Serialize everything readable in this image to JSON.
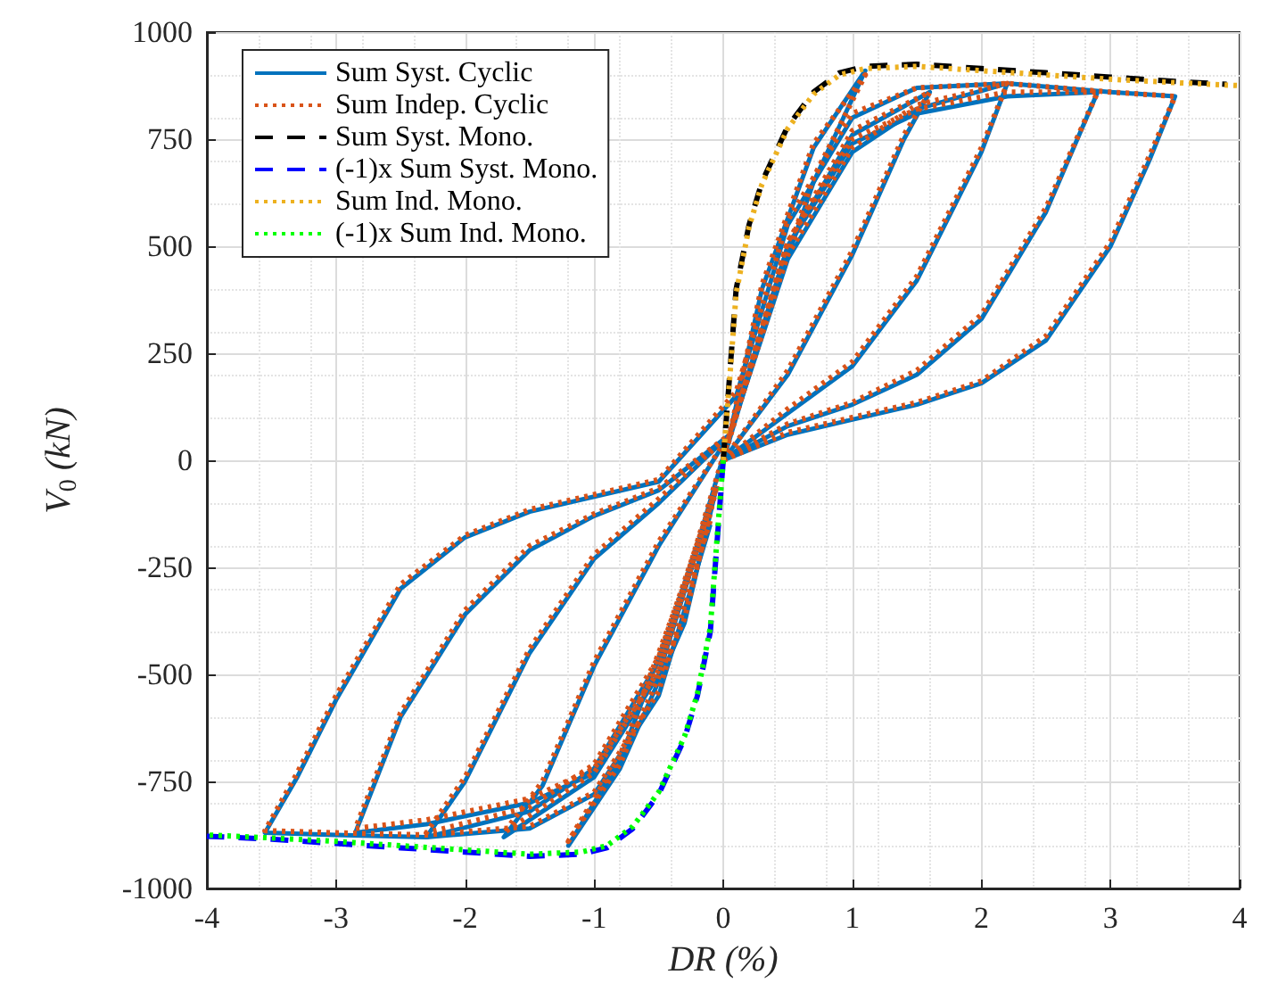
{
  "chart_data": {
    "type": "line",
    "xlabel": "DR (%)",
    "ylabel": "V$_{0}$ (kN)",
    "xlim": [
      -4,
      4
    ],
    "xticks": [
      -4,
      -3,
      -2,
      -1,
      0,
      1,
      2,
      3,
      4
    ],
    "ylim": [
      -1000,
      1000
    ],
    "yticks": [
      -1000,
      -750,
      -500,
      -250,
      0,
      250,
      500,
      750,
      1000
    ],
    "grid": true,
    "legend": "top left",
    "marker": "none",
    "series": [
      {
        "name": "Sum Syst. Cyclic",
        "color": "#0072bd",
        "line_style": "solid",
        "x": [
          0,
          0.3,
          0.7,
          1.1,
          0.7,
          0.3,
          0.05,
          -0.3,
          -0.8,
          -1.2,
          -0.8,
          -0.3,
          -0.05
        ],
        "values": [
          0,
          300,
          650,
          910,
          730,
          400,
          60,
          -300,
          -700,
          -900,
          -720,
          -380,
          -60
        ]
      },
      {
        "color": "#0072bd",
        "line_style": "solid",
        "x": [
          0,
          0.5,
          1,
          1.4,
          1.6,
          1,
          0.5,
          0.05,
          -0.5,
          -1,
          -1.4,
          -1.7,
          -1,
          -0.5,
          -0.05
        ],
        "values": [
          0,
          200,
          480,
          750,
          860,
          760,
          500,
          60,
          -200,
          -480,
          -760,
          -880,
          -740,
          -500,
          -60
        ]
      },
      {
        "color": "#0072bd",
        "line_style": "solid",
        "x": [
          0,
          0.5,
          1,
          1.5,
          2,
          2.2,
          1.5,
          1,
          0.5,
          0.05,
          -0.5,
          -1,
          -1.5,
          -2,
          -2.3,
          -1.5,
          -1,
          -0.5,
          -0.05
        ],
        "values": [
          0,
          110,
          220,
          420,
          720,
          880,
          820,
          720,
          470,
          60,
          -100,
          -230,
          -450,
          -750,
          -880,
          -820,
          -720,
          -470,
          -60
        ]
      },
      {
        "color": "#0072bd",
        "line_style": "solid",
        "x": [
          0,
          0.5,
          1,
          1.5,
          2,
          2.5,
          2.9,
          2.2,
          1.5,
          1,
          0.5,
          0.05,
          -0.5,
          -1,
          -1.5,
          -2,
          -2.5,
          -2.85,
          -2.3,
          -1.5,
          -1,
          -0.5,
          -0.05
        ],
        "values": [
          0,
          80,
          130,
          200,
          330,
          580,
          860,
          850,
          810,
          740,
          500,
          60,
          -70,
          -130,
          -210,
          -360,
          -600,
          -870,
          -850,
          -800,
          -730,
          -500,
          -60
        ]
      },
      {
        "color": "#0072bd",
        "line_style": "solid",
        "x": [
          0,
          0.5,
          1,
          1.5,
          2,
          2.5,
          3,
          3.3,
          3.5,
          3,
          2.2,
          1.5,
          1,
          0.5,
          0.1,
          -0.5,
          -1,
          -1.5,
          -2,
          -2.5,
          -3,
          -3.3,
          -3.55,
          -3,
          -2.3,
          -1.5,
          -1,
          -0.5,
          -0.1
        ],
        "values": [
          0,
          60,
          95,
          130,
          180,
          280,
          500,
          700,
          850,
          860,
          880,
          870,
          800,
          550,
          150,
          -50,
          -85,
          -120,
          -180,
          -300,
          -560,
          -740,
          -870,
          -875,
          -880,
          -860,
          -780,
          -550,
          -150
        ]
      },
      {
        "name": "Sum Indep. Cyclic",
        "color": "#d95319",
        "line_style": "dotted",
        "x": [
          0,
          0.3,
          0.7,
          1.1,
          0.7,
          0.3,
          0.05,
          -0.3,
          -0.8,
          -1.2,
          -0.8,
          -0.3,
          -0.05
        ],
        "values": [
          0,
          310,
          660,
          900,
          740,
          410,
          60,
          -290,
          -690,
          -890,
          -710,
          -370,
          -60
        ]
      },
      {
        "color": "#d95319",
        "line_style": "dotted",
        "x": [
          0,
          0.5,
          1,
          1.4,
          1.6,
          1,
          0.5,
          0.05,
          -0.5,
          -1,
          -1.4,
          -1.7,
          -1,
          -0.5,
          -0.05
        ],
        "values": [
          0,
          210,
          490,
          760,
          860,
          770,
          510,
          60,
          -190,
          -470,
          -750,
          -870,
          -730,
          -490,
          -60
        ]
      },
      {
        "color": "#d95319",
        "line_style": "dotted",
        "x": [
          0,
          0.5,
          1,
          1.5,
          2,
          2.2,
          1.5,
          1,
          0.5,
          0.05,
          -0.5,
          -1,
          -1.5,
          -2,
          -2.3,
          -1.5,
          -1,
          -0.5,
          -0.05
        ],
        "values": [
          0,
          120,
          230,
          430,
          730,
          880,
          830,
          730,
          480,
          60,
          -90,
          -220,
          -440,
          -740,
          -870,
          -810,
          -710,
          -460,
          -60
        ]
      },
      {
        "color": "#d95319",
        "line_style": "dotted",
        "x": [
          0,
          0.5,
          1,
          1.5,
          2,
          2.5,
          2.9,
          2.2,
          1.5,
          1,
          0.5,
          0.05,
          -0.5,
          -1,
          -1.5,
          -2,
          -2.5,
          -2.85,
          -2.3,
          -1.5,
          -1,
          -0.5,
          -0.05
        ],
        "values": [
          0,
          85,
          135,
          210,
          340,
          590,
          860,
          860,
          820,
          750,
          510,
          60,
          -65,
          -125,
          -200,
          -350,
          -590,
          -860,
          -840,
          -790,
          -720,
          -490,
          -60
        ]
      },
      {
        "color": "#d95319",
        "line_style": "dotted",
        "x": [
          0,
          0.5,
          1,
          1.5,
          2,
          2.5,
          3,
          3.3,
          3.5,
          3,
          2.2,
          1.5,
          1,
          0.5,
          0.1,
          -0.5,
          -1,
          -1.5,
          -2,
          -2.5,
          -3,
          -3.3,
          -3.55,
          -3,
          -2.3,
          -1.5,
          -1,
          -0.5,
          -0.1
        ],
        "values": [
          0,
          65,
          100,
          135,
          185,
          290,
          510,
          710,
          850,
          860,
          880,
          870,
          810,
          560,
          160,
          -45,
          -80,
          -115,
          -175,
          -290,
          -550,
          -730,
          -865,
          -870,
          -875,
          -855,
          -775,
          -540,
          -140
        ]
      },
      {
        "name": "Sum Syst. Mono.",
        "color": "#000000",
        "line_style": "dashed",
        "x": [
          0,
          0.05,
          0.1,
          0.2,
          0.3,
          0.5,
          0.7,
          0.9,
          1.1,
          1.5,
          2,
          2.5,
          3,
          3.5,
          3.9
        ],
        "values": [
          0,
          200,
          400,
          550,
          650,
          780,
          860,
          905,
          920,
          925,
          915,
          905,
          895,
          885,
          878
        ]
      },
      {
        "name": "(-1)x Sum Syst. Mono.",
        "color": "#0000ff",
        "line_style": "dashed",
        "x": [
          0,
          -0.05,
          -0.1,
          -0.2,
          -0.3,
          -0.5,
          -0.7,
          -0.9,
          -1.1,
          -1.5,
          -2,
          -2.5,
          -3,
          -3.5,
          -4
        ],
        "values": [
          0,
          -200,
          -400,
          -550,
          -650,
          -780,
          -860,
          -905,
          -920,
          -925,
          -915,
          -905,
          -895,
          -885,
          -878
        ]
      },
      {
        "name": "Sum Ind. Mono.",
        "color": "#edb120",
        "line_style": "dotted",
        "x": [
          0,
          0.05,
          0.1,
          0.2,
          0.3,
          0.5,
          0.7,
          0.9,
          1.1,
          1.5,
          2,
          2.5,
          3,
          3.5,
          4
        ],
        "values": [
          0,
          190,
          390,
          545,
          645,
          775,
          855,
          900,
          915,
          920,
          910,
          900,
          890,
          882,
          875
        ]
      },
      {
        "name": "(-1)x Sum Ind. Mono.",
        "color": "#00ff00",
        "line_style": "dotted",
        "x": [
          0,
          -0.05,
          -0.1,
          -0.2,
          -0.3,
          -0.5,
          -0.7,
          -0.9,
          -1.1,
          -1.5,
          -2,
          -2.5,
          -3,
          -3.5,
          -4
        ],
        "values": [
          0,
          -190,
          -390,
          -545,
          -645,
          -775,
          -855,
          -900,
          -915,
          -920,
          -910,
          -900,
          -890,
          -882,
          -875
        ]
      }
    ]
  }
}
